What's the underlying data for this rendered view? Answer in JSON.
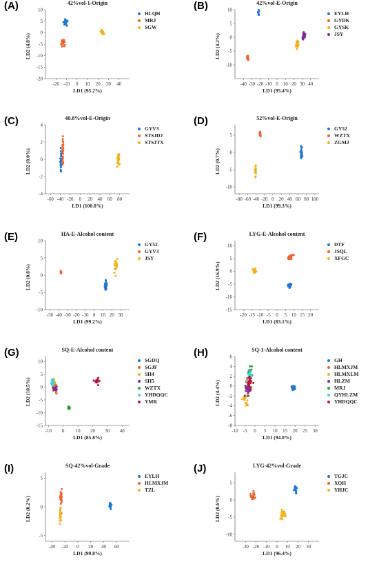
{
  "chart_data": [
    {
      "id": "A",
      "panel_label": "(A)",
      "type": "scatter",
      "title": "42%vol-1-Origin",
      "xlabel": "LD1 (95.2%)",
      "ylabel": "LD2 (4.8%)",
      "xlim": [
        -30,
        50
      ],
      "ylim": [
        -20,
        10
      ],
      "xticks": [
        -20,
        -10,
        0,
        10,
        20,
        30,
        40
      ],
      "yticks": [
        -20,
        -15,
        -10,
        -5,
        0,
        5,
        10
      ],
      "grid": false,
      "legend_position": "top-right",
      "series": [
        {
          "name": "HLQH",
          "color": "#1f77d4",
          "center": [
            -11,
            4.8
          ],
          "spread": [
            1.6,
            1.5
          ],
          "n": 26
        },
        {
          "name": "MRJ",
          "color": "#f0602a",
          "center": [
            -13,
            -4.3
          ],
          "spread": [
            1.6,
            1.6
          ],
          "n": 24
        },
        {
          "name": "SGW",
          "color": "#f3b21b",
          "center": [
            24,
            0
          ],
          "spread": [
            1.2,
            1.0
          ],
          "n": 22
        }
      ]
    },
    {
      "id": "B",
      "panel_label": "(B)",
      "type": "scatter",
      "title": "42%vol-E-Origin",
      "xlabel": "LD1 (95.4%)",
      "ylabel": "LD2 (4.2%)",
      "xlim": [
        -50,
        50
      ],
      "ylim": [
        -15,
        10
      ],
      "xticks": [
        -40,
        -30,
        -20,
        -10,
        0,
        10,
        20,
        30,
        40
      ],
      "yticks": [
        -10,
        -5,
        0,
        5,
        10
      ],
      "grid": false,
      "legend_position": "top-right",
      "series": [
        {
          "name": "EYLH",
          "color": "#1f77d4",
          "center": [
            -22,
            9.2
          ],
          "spread": [
            0.4,
            0.9
          ],
          "n": 12
        },
        {
          "name": "GYDK",
          "color": "#f0602a",
          "center": [
            -35,
            -7.5
          ],
          "spread": [
            0.8,
            0.7
          ],
          "n": 18
        },
        {
          "name": "GYSK",
          "color": "#f3b21b",
          "center": [
            24,
            -2.5
          ],
          "spread": [
            1.6,
            1.6
          ],
          "n": 22
        },
        {
          "name": "JSY",
          "color": "#7b2d8e",
          "center": [
            32,
            0.3
          ],
          "spread": [
            1.6,
            1.4
          ],
          "n": 24
        }
      ]
    },
    {
      "id": "C",
      "panel_label": "(C)",
      "type": "scatter",
      "title": "40.8%vol-E-Origin",
      "xlabel": "LD1 (100.0%)",
      "ylabel": "LD2 (0.0%)",
      "xlim": [
        -70,
        100
      ],
      "ylim": [
        -4,
        4
      ],
      "xticks": [
        -60,
        -40,
        -20,
        0,
        20,
        40,
        60,
        80
      ],
      "yticks": [
        -4,
        -2,
        0,
        2,
        4
      ],
      "grid": false,
      "legend_position": "top-right",
      "series": [
        {
          "name": "GYV3",
          "color": "#1f77d4",
          "center": [
            -39,
            -0.3
          ],
          "spread": [
            1.0,
            1.1
          ],
          "n": 26
        },
        {
          "name": "STSJDJ",
          "color": "#f0602a",
          "center": [
            -35,
            1.0
          ],
          "spread": [
            1.0,
            1.2
          ],
          "n": 26
        },
        {
          "name": "STSJTX",
          "color": "#f3b21b",
          "center": [
            77,
            -0.2
          ],
          "spread": [
            1.8,
            0.9
          ],
          "n": 24
        }
      ]
    },
    {
      "id": "D",
      "panel_label": "(D)",
      "type": "scatter",
      "title": "52%vol-E-Origin",
      "xlabel": "LD1 (99.3%)",
      "ylabel": "LD2 (0.7%)",
      "xlim": [
        -90,
        110
      ],
      "ylim": [
        -12,
        8
      ],
      "xticks": [
        -80,
        -60,
        -40,
        -20,
        0,
        20,
        40,
        60,
        80,
        100
      ],
      "yticks": [
        -10,
        -5,
        0,
        5
      ],
      "grid": false,
      "legend_position": "top-right",
      "series": [
        {
          "name": "GY52",
          "color": "#1f77d4",
          "center": [
            68,
            0
          ],
          "spread": [
            2.0,
            1.6
          ],
          "n": 26
        },
        {
          "name": "WZTX",
          "color": "#f0602a",
          "center": [
            -30,
            5.4
          ],
          "spread": [
            0.9,
            0.6
          ],
          "n": 14
        },
        {
          "name": "ZGMJ",
          "color": "#f3b21b",
          "center": [
            -41,
            -5.2
          ],
          "spread": [
            0.9,
            1.3
          ],
          "n": 20
        }
      ]
    },
    {
      "id": "E",
      "panel_label": "(E)",
      "type": "scatter",
      "title": "HA-E-Alcohol content",
      "xlabel": "LD1 (99.2%)",
      "ylabel": "LD2 (0.8%)",
      "xlim": [
        -55,
        40
      ],
      "ylim": [
        -10,
        10
      ],
      "xticks": [
        -50,
        -40,
        -30,
        -20,
        -10,
        0,
        10,
        20,
        30
      ],
      "yticks": [
        -10,
        -5,
        0,
        5,
        10
      ],
      "grid": false,
      "legend_position": "top-right",
      "series": [
        {
          "name": "GY52",
          "color": "#1f77d4",
          "center": [
            13,
            -3
          ],
          "spread": [
            1.3,
            1.3
          ],
          "n": 24
        },
        {
          "name": "GYV3",
          "color": "#f0602a",
          "center": [
            -37.5,
            0.6
          ],
          "spread": [
            0.6,
            0.6
          ],
          "n": 8
        },
        {
          "name": "JSY",
          "color": "#f3b21b",
          "center": [
            25,
            2.8
          ],
          "spread": [
            1.5,
            1.6
          ],
          "n": 24
        }
      ]
    },
    {
      "id": "F",
      "panel_label": "(F)",
      "type": "scatter",
      "title": "LYG-E-Alcohol content",
      "xlabel": "LD1 (83.1%)",
      "ylabel": "LD2 (16.9%)",
      "xlim": [
        -25,
        25
      ],
      "ylim": [
        -15,
        12
      ],
      "xticks": [
        -20,
        -15,
        -10,
        -5,
        0,
        5,
        10,
        15,
        20
      ],
      "yticks": [
        -15,
        -10,
        -5,
        0,
        5,
        10
      ],
      "grid": false,
      "legend_position": "top-right",
      "series": [
        {
          "name": "DTF",
          "color": "#1f77d4",
          "center": [
            7.3,
            -5.4
          ],
          "spread": [
            1.0,
            1.0
          ],
          "n": 24
        },
        {
          "name": "JSQL",
          "color": "#f0602a",
          "center": [
            8.0,
            5.6
          ],
          "spread": [
            1.3,
            0.8
          ],
          "n": 22
        },
        {
          "name": "XFGC",
          "color": "#f3b21b",
          "center": [
            -13.5,
            0.2
          ],
          "spread": [
            1.0,
            0.8
          ],
          "n": 22
        }
      ]
    },
    {
      "id": "G",
      "panel_label": "(G)",
      "type": "scatter",
      "title": "SQ-E-Alcohol content",
      "xlabel": "LD1 (85.8%)",
      "ylabel": "LD2 (10.5%)",
      "xlim": [
        -12,
        45
      ],
      "ylim": [
        -15,
        12
      ],
      "xticks": [
        -10,
        0,
        10,
        20,
        30,
        40
      ],
      "yticks": [
        -15,
        -10,
        -5,
        0,
        5,
        10
      ],
      "grid": false,
      "legend_position": "top-right",
      "series": [
        {
          "name": "SGDQ",
          "color": "#1f77d4",
          "center": [
            -6,
            0.5
          ],
          "spread": [
            1.2,
            1.3
          ],
          "n": 16
        },
        {
          "name": "SGJF",
          "color": "#f0602a",
          "center": [
            -5.5,
            -0.3
          ],
          "spread": [
            1.3,
            1.3
          ],
          "n": 16
        },
        {
          "name": "SH4",
          "color": "#f3b21b",
          "center": [
            -6.2,
            2.2
          ],
          "spread": [
            0.9,
            1.2
          ],
          "n": 16
        },
        {
          "name": "SH5",
          "color": "#7b2d8e",
          "center": [
            -5,
            -0.8
          ],
          "spread": [
            1.1,
            1.0
          ],
          "n": 14
        },
        {
          "name": "WZTX",
          "color": "#2ca02c",
          "center": [
            4,
            -8.2
          ],
          "spread": [
            0.8,
            0.5
          ],
          "n": 14
        },
        {
          "name": "YHDQQC",
          "color": "#3fd0e8",
          "center": [
            -7,
            1.8
          ],
          "spread": [
            1.2,
            1.2
          ],
          "n": 16
        },
        {
          "name": "YMR",
          "color": "#b5173e",
          "center": [
            23,
            2.5
          ],
          "spread": [
            1.6,
            1.4
          ],
          "n": 18
        }
      ]
    },
    {
      "id": "H",
      "panel_label": "(H)",
      "type": "scatter",
      "title": "SQ-1-Alcohol content",
      "xlabel": "LD1 (94.0%)",
      "ylabel": "LD2 (4.4%)",
      "xlim": [
        -10,
        32
      ],
      "ylim": [
        -8,
        6
      ],
      "xticks": [
        -10,
        -5,
        0,
        5,
        10,
        15,
        20,
        25,
        30
      ],
      "yticks": [
        -8,
        -6,
        -4,
        -2,
        0,
        2,
        4,
        6
      ],
      "grid": false,
      "legend_position": "top-right",
      "series": [
        {
          "name": "GH",
          "color": "#1f77d4",
          "center": [
            19,
            -0.3
          ],
          "spread": [
            0.9,
            0.5
          ],
          "n": 22
        },
        {
          "name": "HLMXJM",
          "color": "#f0602a",
          "center": [
            -3.3,
            0.2
          ],
          "spread": [
            1.5,
            1.6
          ],
          "n": 20
        },
        {
          "name": "HLMXLM",
          "color": "#f3b21b",
          "center": [
            -4.3,
            -2.8
          ],
          "spread": [
            1.8,
            1.5
          ],
          "n": 20
        },
        {
          "name": "HLZM",
          "color": "#7b2d8e",
          "center": [
            -4,
            -0.8
          ],
          "spread": [
            1.4,
            1.4
          ],
          "n": 20
        },
        {
          "name": "MRJ",
          "color": "#2ca02c",
          "center": [
            -2.6,
            3.0
          ],
          "spread": [
            1.1,
            0.8
          ],
          "n": 14
        },
        {
          "name": "QYHLZM",
          "color": "#3fd0e8",
          "center": [
            -2.8,
            2.1
          ],
          "spread": [
            1.0,
            0.8
          ],
          "n": 16
        },
        {
          "name": "YHDQQC",
          "color": "#b5173e",
          "center": [
            -2.5,
            0.8
          ],
          "spread": [
            1.2,
            1.3
          ],
          "n": 18
        }
      ]
    },
    {
      "id": "I",
      "panel_label": "(I)",
      "type": "scatter",
      "title": "SQ-42%vol-Grade",
      "xlabel": "LD1 (99.8%)",
      "ylabel": "LD2 (0.2%)",
      "xlim": [
        -50,
        80
      ],
      "ylim": [
        -6,
        6
      ],
      "xticks": [
        -40,
        -20,
        0,
        20,
        40,
        60
      ],
      "yticks": [
        -5,
        0,
        5
      ],
      "grid": false,
      "legend_position": "top-right",
      "series": [
        {
          "name": "EYLH",
          "color": "#1f77d4",
          "center": [
            50,
            0.2
          ],
          "spread": [
            1.3,
            0.5
          ],
          "n": 18
        },
        {
          "name": "HLMXJM",
          "color": "#f0602a",
          "center": [
            -26,
            1.6
          ],
          "spread": [
            1.2,
            1.3
          ],
          "n": 26
        },
        {
          "name": "TZL",
          "color": "#f3b21b",
          "center": [
            -27,
            -1.8
          ],
          "spread": [
            1.2,
            1.3
          ],
          "n": 24
        }
      ]
    },
    {
      "id": "J",
      "panel_label": "(J)",
      "type": "scatter",
      "title": "LYG-42%vol-Grade",
      "xlabel": "LD1 (96.4%)",
      "ylabel": "LD2 (0.6%)",
      "xlim": [
        -40,
        40
      ],
      "ylim": [
        -12,
        8
      ],
      "xticks": [
        -30,
        -20,
        -10,
        0,
        10,
        20,
        30
      ],
      "yticks": [
        -10,
        -5,
        0,
        5
      ],
      "grid": false,
      "legend_position": "top-right",
      "series": [
        {
          "name": "TGJC",
          "color": "#1f77d4",
          "center": [
            17.5,
            3.2
          ],
          "spread": [
            1.2,
            1.2
          ],
          "n": 22
        },
        {
          "name": "XQH",
          "color": "#f0602a",
          "center": [
            -23,
            1.0
          ],
          "spread": [
            2.0,
            1.2
          ],
          "n": 24
        },
        {
          "name": "YHJC",
          "color": "#f3b21b",
          "center": [
            6,
            -4.3
          ],
          "spread": [
            1.8,
            1.2
          ],
          "n": 24
        }
      ]
    }
  ]
}
